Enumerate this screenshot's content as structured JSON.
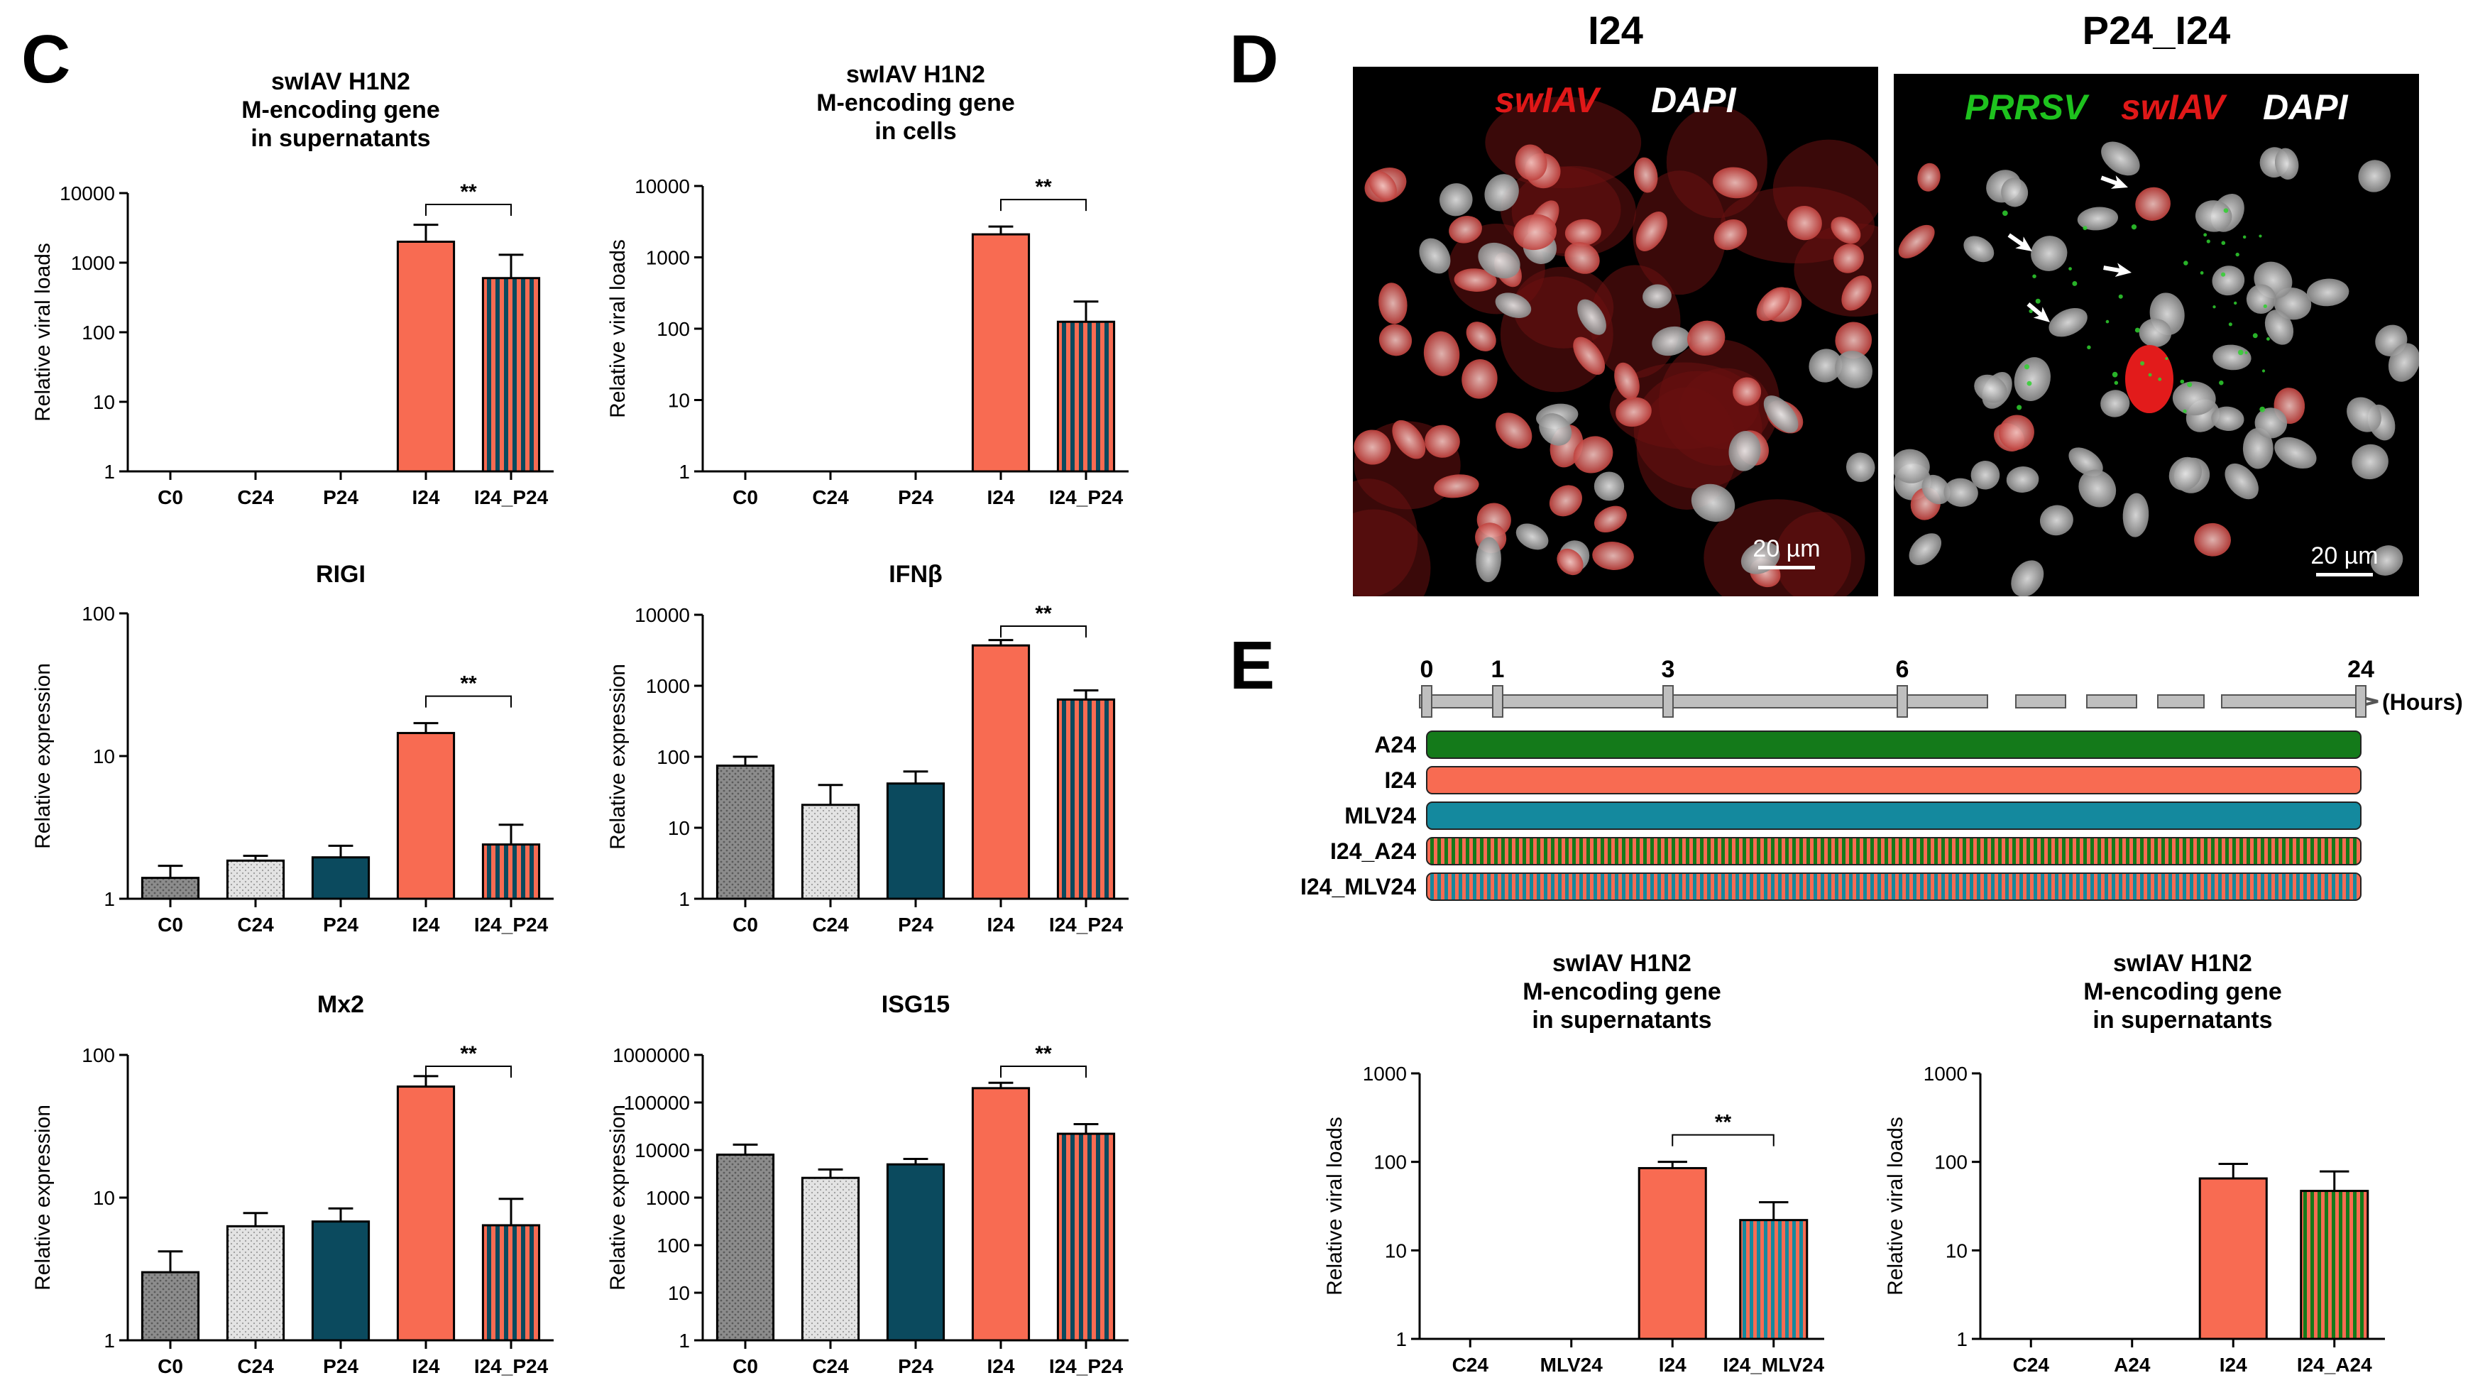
{
  "panels": {
    "C": "C",
    "D": "D",
    "E": "E"
  },
  "colors": {
    "c0": "#8c8c8c",
    "c24": "#e3e3e3",
    "p24": "#0b4a5e",
    "i24": "#f86b52",
    "a24": "#147a1a",
    "mlv24": "#14899e",
    "axis": "#000000"
  },
  "chart_data": [
    {
      "id": "C1",
      "type": "bar",
      "yscale": "log",
      "title": [
        "swIAV H1N2",
        "M-encoding gene",
        "in supernatants"
      ],
      "ylabel": "Relative viral loads",
      "ylim": [
        1,
        10000
      ],
      "yticks": [
        1,
        10,
        100,
        1000,
        10000
      ],
      "ytick_labels": [
        "1",
        "10",
        "100",
        "1000",
        "10000"
      ],
      "categories": [
        "C0",
        "C24",
        "P24",
        "I24",
        "I24_P24"
      ],
      "values": [
        null,
        null,
        null,
        2000,
        600
      ],
      "errors": [
        null,
        null,
        null,
        3500,
        1300
      ],
      "fills": [
        "none",
        "none",
        "none",
        "i24",
        "i24_p24"
      ],
      "sig": {
        "from": 3,
        "to": 4,
        "label": "**"
      }
    },
    {
      "id": "C2",
      "type": "bar",
      "yscale": "log",
      "title": [
        "swIAV H1N2",
        "M-encoding gene",
        "in cells"
      ],
      "ylabel": "Relative viral loads",
      "ylim": [
        1,
        10000
      ],
      "yticks": [
        1,
        10,
        100,
        1000,
        10000
      ],
      "ytick_labels": [
        "1",
        "10",
        "100",
        "1000",
        "10000"
      ],
      "categories": [
        "C0",
        "C24",
        "P24",
        "I24",
        "I24_P24"
      ],
      "values": [
        null,
        null,
        null,
        2100,
        125
      ],
      "errors": [
        null,
        null,
        null,
        2700,
        240
      ],
      "fills": [
        "none",
        "none",
        "none",
        "i24",
        "i24_p24"
      ],
      "sig": {
        "from": 3,
        "to": 4,
        "label": "**"
      }
    },
    {
      "id": "C3",
      "type": "bar",
      "yscale": "log",
      "title": [
        "RIGI"
      ],
      "ylabel": "Relative expression",
      "ylim": [
        1,
        100
      ],
      "yticks": [
        1,
        10,
        100
      ],
      "ytick_labels": [
        "1",
        "10",
        "100"
      ],
      "categories": [
        "C0",
        "C24",
        "P24",
        "I24",
        "I24_P24"
      ],
      "values": [
        1.4,
        1.85,
        1.95,
        14.5,
        2.4
      ],
      "errors": [
        1.7,
        2.0,
        2.35,
        17.0,
        3.3
      ],
      "fills": [
        "c0",
        "c24",
        "p24",
        "i24",
        "i24_p24"
      ],
      "sig": {
        "from": 3,
        "to": 4,
        "label": "**"
      }
    },
    {
      "id": "C4",
      "type": "bar",
      "yscale": "log",
      "title": [
        "IFNβ"
      ],
      "ylabel": "Relative expression",
      "ylim": [
        1,
        10000
      ],
      "yticks": [
        1,
        10,
        100,
        1000,
        10000
      ],
      "ytick_labels": [
        "1",
        "10",
        "100",
        "1000",
        "10000"
      ],
      "categories": [
        "C0",
        "C24",
        "P24",
        "I24",
        "I24_P24"
      ],
      "values": [
        75,
        21,
        42,
        3700,
        640
      ],
      "errors": [
        100,
        40,
        62,
        4400,
        860
      ],
      "fills": [
        "c0",
        "c24",
        "p24",
        "i24",
        "i24_p24"
      ],
      "sig": {
        "from": 3,
        "to": 4,
        "label": "**"
      }
    },
    {
      "id": "C5",
      "type": "bar",
      "yscale": "log",
      "title": [
        "Mx2"
      ],
      "ylabel": "Relative expression",
      "ylim": [
        1,
        100
      ],
      "yticks": [
        1,
        10,
        100
      ],
      "ytick_labels": [
        "1",
        "10",
        "100"
      ],
      "categories": [
        "C0",
        "C24",
        "P24",
        "I24",
        "I24_P24"
      ],
      "values": [
        3.0,
        6.3,
        6.8,
        60,
        6.4
      ],
      "errors": [
        4.2,
        7.8,
        8.4,
        71,
        9.8
      ],
      "fills": [
        "c0",
        "c24",
        "p24",
        "i24",
        "i24_p24"
      ],
      "sig": {
        "from": 3,
        "to": 4,
        "label": "**"
      }
    },
    {
      "id": "C6",
      "type": "bar",
      "yscale": "log",
      "title": [
        "ISG15"
      ],
      "ylabel": "Relative expression",
      "ylim": [
        1,
        1000000
      ],
      "yticks": [
        1,
        10,
        100,
        1000,
        10000,
        100000,
        1000000
      ],
      "ytick_labels": [
        "1",
        "10",
        "100",
        "1000",
        "10000",
        "100000",
        "1000000"
      ],
      "categories": [
        "C0",
        "C24",
        "P24",
        "I24",
        "I24_P24"
      ],
      "values": [
        8000,
        2600,
        5000,
        200000,
        22000
      ],
      "errors": [
        13000,
        3900,
        6500,
        260000,
        35000
      ],
      "fills": [
        "c0",
        "c24",
        "p24",
        "i24",
        "i24_p24"
      ],
      "sig": {
        "from": 3,
        "to": 4,
        "label": "**"
      }
    },
    {
      "id": "E1",
      "type": "bar",
      "yscale": "log",
      "title": [
        "swIAV H1N2",
        "M-encoding gene",
        "in supernatants"
      ],
      "ylabel": "Relative viral loads",
      "ylim": [
        1,
        1000
      ],
      "yticks": [
        1,
        10,
        100,
        1000
      ],
      "ytick_labels": [
        "1",
        "10",
        "100",
        "1000"
      ],
      "categories": [
        "C24",
        "MLV24",
        "I24",
        "I24_MLV24"
      ],
      "values": [
        null,
        null,
        85,
        22
      ],
      "errors": [
        null,
        null,
        100,
        35
      ],
      "fills": [
        "none",
        "none",
        "i24",
        "i24_mlv24"
      ],
      "sig": {
        "from": 2,
        "to": 3,
        "label": "**"
      }
    },
    {
      "id": "E2",
      "type": "bar",
      "yscale": "log",
      "title": [
        "swIAV H1N2",
        "M-encoding gene",
        "in supernatants"
      ],
      "ylabel": "Relative viral loads",
      "ylim": [
        1,
        1000
      ],
      "yticks": [
        1,
        10,
        100,
        1000
      ],
      "ytick_labels": [
        "1",
        "10",
        "100",
        "1000"
      ],
      "categories": [
        "C24",
        "A24",
        "I24",
        "I24_A24"
      ],
      "values": [
        null,
        null,
        65,
        47
      ],
      "errors": [
        null,
        null,
        95,
        78
      ],
      "fills": [
        "none",
        "none",
        "i24",
        "i24_a24"
      ],
      "sig": null
    }
  ],
  "micrographs": [
    {
      "title": "I24",
      "channels": [
        {
          "text": "swIAV",
          "color": "#e01818"
        },
        {
          "text": "DAPI",
          "color": "#ffffff"
        }
      ],
      "scalebar": "20 µm"
    },
    {
      "title": "P24_I24",
      "channels": [
        {
          "text": "PRRSV",
          "color": "#1ec21e"
        },
        {
          "text": "swIAV",
          "color": "#e01818"
        },
        {
          "text": "DAPI",
          "color": "#ffffff"
        }
      ],
      "scalebar": "20 µm"
    }
  ],
  "timeline": {
    "ticks": [
      "0",
      "1",
      "3",
      "6",
      "24"
    ],
    "unit_label": "(Hours)",
    "rows": [
      {
        "label": "A24",
        "fill": "a24"
      },
      {
        "label": "I24",
        "fill": "i24"
      },
      {
        "label": "MLV24",
        "fill": "mlv24"
      },
      {
        "label": "I24_A24",
        "fill": "i24_a24"
      },
      {
        "label": "I24_MLV24",
        "fill": "i24_mlv24"
      }
    ]
  }
}
